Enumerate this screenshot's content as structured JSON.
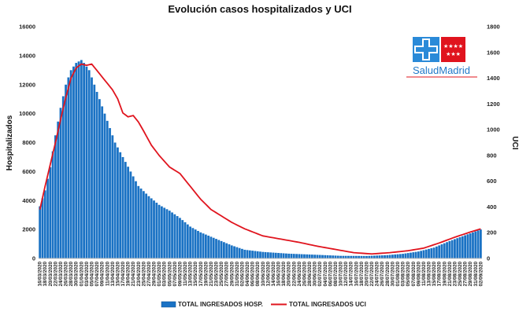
{
  "chart_data": {
    "type": "bar",
    "title": "Evolución casos hospitalizados y UCI",
    "ylabel": "Hospitalizados",
    "y2label": "UCI",
    "ylim": [
      0,
      16000
    ],
    "y2lim": [
      0,
      1800
    ],
    "y_ticks": [
      "0",
      "2000",
      "4000",
      "6000",
      "8000",
      "10000",
      "12000",
      "14000",
      "16000"
    ],
    "y2_ticks": [
      "0",
      "200",
      "400",
      "600",
      "800",
      "1000",
      "1200",
      "1400",
      "1600",
      "1800"
    ],
    "start_date": "2020-03-16",
    "end_date": "2020-09-02",
    "x_label_every_days": 2,
    "grid": false,
    "legend_position": "bottom",
    "colors": {
      "bars": "#1a72c4",
      "line": "#e0141e"
    },
    "series": [
      {
        "name": "TOTAL INGRESADOS HOSP.",
        "type": "bar",
        "axis": "left",
        "keyframes": [
          [
            "2020-03-16",
            3600
          ],
          [
            "2020-03-18",
            4700
          ],
          [
            "2020-03-20",
            6300
          ],
          [
            "2020-03-22",
            8500
          ],
          [
            "2020-03-24",
            10400
          ],
          [
            "2020-03-26",
            12000
          ],
          [
            "2020-03-28",
            13000
          ],
          [
            "2020-03-30",
            13500
          ],
          [
            "2020-04-01",
            13700
          ],
          [
            "2020-04-02",
            13500
          ],
          [
            "2020-04-04",
            13000
          ],
          [
            "2020-04-06",
            12000
          ],
          [
            "2020-04-08",
            11000
          ],
          [
            "2020-04-10",
            10000
          ],
          [
            "2020-04-12",
            9000
          ],
          [
            "2020-04-14",
            8000
          ],
          [
            "2020-04-17",
            7000
          ],
          [
            "2020-04-20",
            6000
          ],
          [
            "2020-04-23",
            5000
          ],
          [
            "2020-04-27",
            4300
          ],
          [
            "2020-05-01",
            3700
          ],
          [
            "2020-05-05",
            3300
          ],
          [
            "2020-05-09",
            2800
          ],
          [
            "2020-05-13",
            2200
          ],
          [
            "2020-05-17",
            1800
          ],
          [
            "2020-05-21",
            1500
          ],
          [
            "2020-05-25",
            1200
          ],
          [
            "2020-05-29",
            900
          ],
          [
            "2020-06-03",
            600
          ],
          [
            "2020-06-10",
            450
          ],
          [
            "2020-06-20",
            330
          ],
          [
            "2020-07-01",
            250
          ],
          [
            "2020-07-10",
            180
          ],
          [
            "2020-07-20",
            170
          ],
          [
            "2020-07-28",
            230
          ],
          [
            "2020-08-03",
            320
          ],
          [
            "2020-08-09",
            480
          ],
          [
            "2020-08-15",
            750
          ],
          [
            "2020-08-21",
            1200
          ],
          [
            "2020-08-27",
            1600
          ],
          [
            "2020-09-02",
            2000
          ]
        ]
      },
      {
        "name": "TOTAL INGRESADOS UCI",
        "type": "line",
        "axis": "right",
        "keyframes": [
          [
            "2020-03-16",
            380
          ],
          [
            "2020-03-18",
            560
          ],
          [
            "2020-03-20",
            730
          ],
          [
            "2020-03-22",
            900
          ],
          [
            "2020-03-24",
            1080
          ],
          [
            "2020-03-26",
            1250
          ],
          [
            "2020-03-28",
            1400
          ],
          [
            "2020-03-30",
            1480
          ],
          [
            "2020-04-01",
            1510
          ],
          [
            "2020-04-03",
            1500
          ],
          [
            "2020-04-05",
            1510
          ],
          [
            "2020-04-07",
            1460
          ],
          [
            "2020-04-09",
            1410
          ],
          [
            "2020-04-11",
            1360
          ],
          [
            "2020-04-13",
            1310
          ],
          [
            "2020-04-15",
            1240
          ],
          [
            "2020-04-17",
            1130
          ],
          [
            "2020-04-19",
            1100
          ],
          [
            "2020-04-21",
            1110
          ],
          [
            "2020-04-23",
            1060
          ],
          [
            "2020-04-25",
            990
          ],
          [
            "2020-04-28",
            880
          ],
          [
            "2020-05-01",
            800
          ],
          [
            "2020-05-05",
            710
          ],
          [
            "2020-05-09",
            660
          ],
          [
            "2020-05-13",
            560
          ],
          [
            "2020-05-17",
            460
          ],
          [
            "2020-05-21",
            380
          ],
          [
            "2020-05-25",
            330
          ],
          [
            "2020-05-29",
            280
          ],
          [
            "2020-06-03",
            230
          ],
          [
            "2020-06-10",
            175
          ],
          [
            "2020-06-17",
            150
          ],
          [
            "2020-06-24",
            125
          ],
          [
            "2020-07-01",
            95
          ],
          [
            "2020-07-08",
            70
          ],
          [
            "2020-07-15",
            45
          ],
          [
            "2020-07-22",
            35
          ],
          [
            "2020-07-29",
            45
          ],
          [
            "2020-08-05",
            60
          ],
          [
            "2020-08-11",
            80
          ],
          [
            "2020-08-17",
            120
          ],
          [
            "2020-08-23",
            165
          ],
          [
            "2020-08-29",
            205
          ],
          [
            "2020-09-02",
            230
          ]
        ]
      }
    ]
  },
  "logo": {
    "name": "SaludMadrid",
    "text": "SaludMadrid",
    "icon": "health-cross-logo-icon",
    "flag_icon": "madrid-flag-icon"
  }
}
